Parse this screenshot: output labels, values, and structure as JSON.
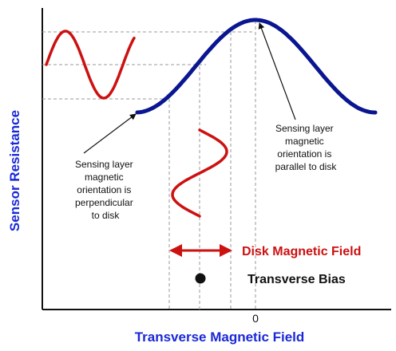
{
  "colors": {
    "response_curve": "#0a1690",
    "signal_wave": "#cc1111",
    "axis_label": "#1a28d6",
    "text": "#111111",
    "guide": "#9a9a9a"
  },
  "axes": {
    "x_label": "Transverse Magnetic Field",
    "y_label": "Sensor Resistance",
    "zero_tick": "0"
  },
  "annotations": {
    "perpendicular": [
      "Sensing layer",
      "magnetic",
      "orientation is",
      "perpendicular",
      "to disk"
    ],
    "parallel": [
      "Sensing layer",
      "magnetic",
      "orientation is",
      "parallel to disk"
    ]
  },
  "legend": {
    "disk_field": "Disk Magnetic Field",
    "transverse_bias": "Transverse Bias"
  }
}
